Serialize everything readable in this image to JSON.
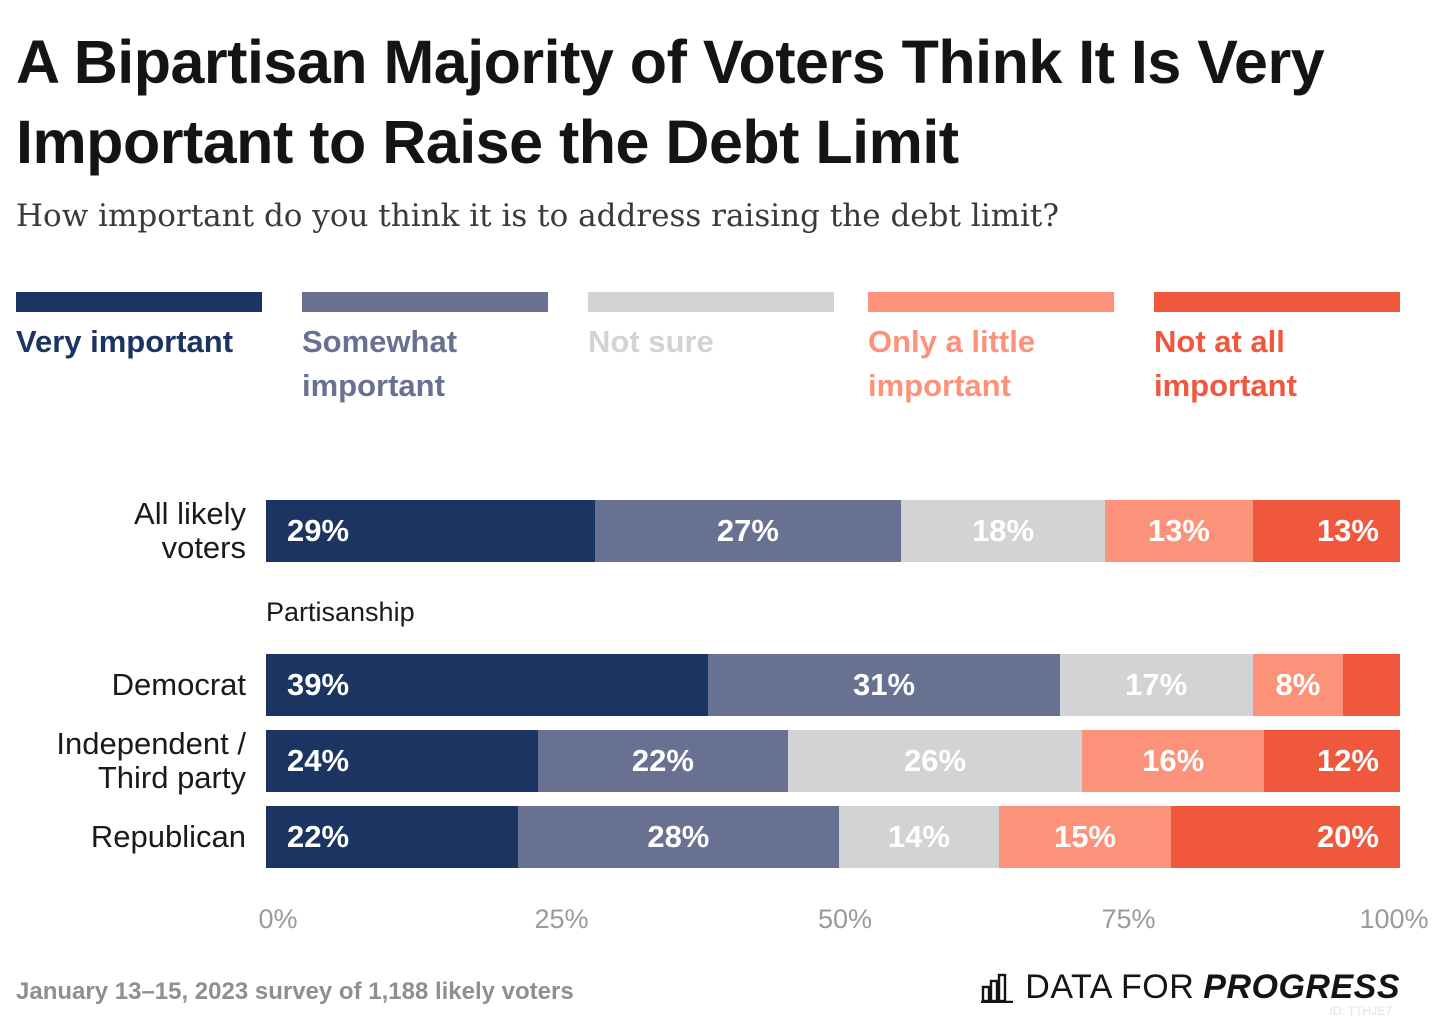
{
  "title": "A Bipartisan Majority of Voters Think It Is Very Important to Raise the Debt Limit",
  "subtitle": "How important do you think it is to address raising the debt limit?",
  "footnote": "January 13–15, 2023 survey of 1,188 likely voters",
  "logo": {
    "light": "DATA FOR",
    "bold": "PROGRESS",
    "icon": "bar-chart-logo-icon"
  },
  "chart_id": "ID: TTHJE7",
  "chart_data": {
    "type": "bar",
    "orientation": "horizontal",
    "stacked": true,
    "title": "A Bipartisan Majority of Voters Think It Is Very Important to Raise the Debt Limit",
    "subtitle": "How important do you think it is to address raising the debt limit?",
    "xlim": [
      0,
      100
    ],
    "x_ticks": [
      "0%",
      "25%",
      "50%",
      "75%",
      "100%"
    ],
    "legend_position": "top",
    "grid": false,
    "section_label": "Partisanship",
    "series": [
      {
        "name": "Very important",
        "color": "#1c3461",
        "label_color": "#1c3461",
        "align": "left"
      },
      {
        "name": "Somewhat important",
        "color": "#687192",
        "label_color": "#687192",
        "align": "center"
      },
      {
        "name": "Not sure",
        "color": "#d2d3d5",
        "label_color": "#d2d3d5",
        "align": "center"
      },
      {
        "name": "Only a little important",
        "color": "#fd927a",
        "label_color": "#fd927a",
        "align": "center"
      },
      {
        "name": "Not at all important",
        "color": "#f0583d",
        "label_color": "#f0583d",
        "align": "right"
      }
    ],
    "legend_lines": [
      [
        "Very important"
      ],
      [
        "Somewhat",
        "important"
      ],
      [
        "Not sure"
      ],
      [
        "Only a little",
        "important"
      ],
      [
        "Not at all",
        "important"
      ]
    ],
    "rows": [
      {
        "category": "All likely\nvoters",
        "values": [
          29,
          27,
          18,
          13,
          13
        ],
        "labels": [
          "29%",
          "27%",
          "18%",
          "13%",
          "13%"
        ]
      },
      {
        "category": "Democrat",
        "values": [
          39,
          31,
          17,
          8,
          5
        ],
        "labels": [
          "39%",
          "31%",
          "17%",
          "8%",
          ""
        ]
      },
      {
        "category": "Independent /\nThird party",
        "values": [
          24,
          22,
          26,
          16,
          12
        ],
        "labels": [
          "24%",
          "22%",
          "26%",
          "16%",
          "12%"
        ]
      },
      {
        "category": "Republican",
        "values": [
          22,
          28,
          14,
          15,
          20
        ],
        "labels": [
          "22%",
          "28%",
          "14%",
          "15%",
          "20%"
        ]
      }
    ]
  }
}
